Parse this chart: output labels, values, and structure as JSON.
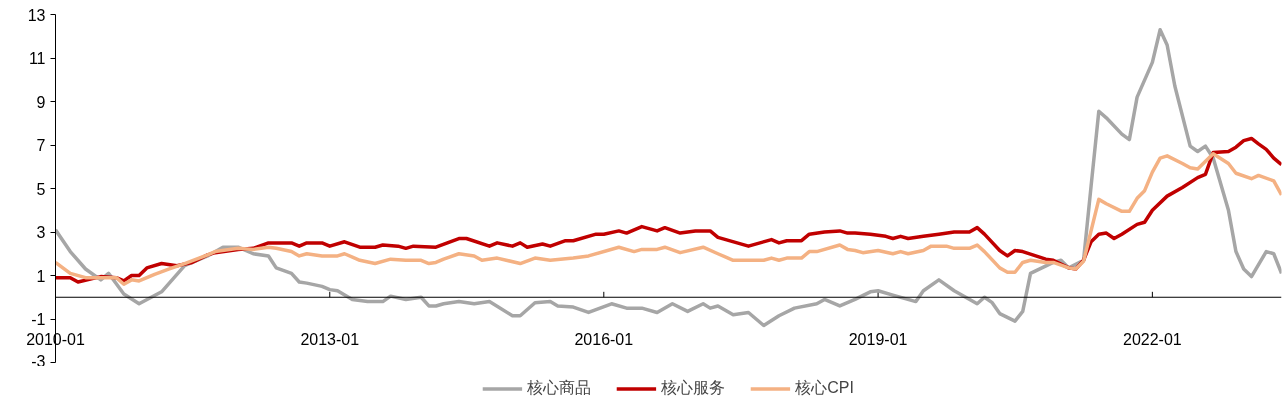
{
  "chart_data": {
    "type": "line",
    "legend": "bottom",
    "grid": false,
    "marker": "none",
    "line_style": "solid",
    "xlim": [
      "2010-01",
      "2023-06"
    ],
    "xticks": [
      "2010-01",
      "2013-01",
      "2016-01",
      "2019-01",
      "2022-01"
    ],
    "ylim": [
      -3,
      13
    ],
    "yticks": [
      -3,
      -1,
      1,
      3,
      5,
      7,
      9,
      11,
      13
    ],
    "series": [
      {
        "name": "核心商品",
        "color": "#a6a6a6",
        "x": [
          "2010-01",
          "2010-03",
          "2010-05",
          "2010-07",
          "2010-08",
          "2010-10",
          "2010-12",
          "2011-03",
          "2011-06",
          "2011-09",
          "2011-11",
          "2012-01",
          "2012-03",
          "2012-05",
          "2012-06",
          "2012-08",
          "2012-09",
          "2012-10",
          "2012-12",
          "2013-01",
          "2013-02",
          "2013-04",
          "2013-06",
          "2013-08",
          "2013-09",
          "2013-11",
          "2014-01",
          "2014-02",
          "2014-03",
          "2014-04",
          "2014-06",
          "2014-08",
          "2014-10",
          "2015-01",
          "2015-02",
          "2015-04",
          "2015-06",
          "2015-07",
          "2015-09",
          "2015-11",
          "2016-02",
          "2016-04",
          "2016-06",
          "2016-08",
          "2016-10",
          "2016-12",
          "2017-02",
          "2017-03",
          "2017-04",
          "2017-06",
          "2017-08",
          "2017-10",
          "2017-12",
          "2018-02",
          "2018-05",
          "2018-06",
          "2018-08",
          "2018-10",
          "2018-12",
          "2019-01",
          "2019-03",
          "2019-06",
          "2019-07",
          "2019-09",
          "2019-11",
          "2020-02",
          "2020-03",
          "2020-04",
          "2020-05",
          "2020-07",
          "2020-08",
          "2020-09",
          "2020-12",
          "2021-01",
          "2021-02",
          "2021-04",
          "2021-05",
          "2021-06",
          "2021-07",
          "2021-09",
          "2021-10",
          "2021-11",
          "2022-01",
          "2022-02",
          "2022-03",
          "2022-04",
          "2022-06",
          "2022-07",
          "2022-08",
          "2022-09",
          "2022-11",
          "2022-12",
          "2023-01",
          "2023-02",
          "2023-04",
          "2023-05",
          "2023-06"
        ],
        "values": [
          3.1,
          2.1,
          1.3,
          0.8,
          1.1,
          0.15,
          -0.3,
          0.25,
          1.45,
          1.9,
          2.3,
          2.3,
          2.0,
          1.9,
          1.35,
          1.1,
          0.7,
          0.65,
          0.5,
          0.35,
          0.3,
          -0.1,
          -0.2,
          -0.2,
          0.05,
          -0.1,
          0.0,
          -0.4,
          -0.4,
          -0.3,
          -0.2,
          -0.3,
          -0.2,
          -0.85,
          -0.85,
          -0.25,
          -0.2,
          -0.4,
          -0.45,
          -0.7,
          -0.3,
          -0.5,
          -0.5,
          -0.7,
          -0.3,
          -0.65,
          -0.3,
          -0.5,
          -0.4,
          -0.8,
          -0.7,
          -1.3,
          -0.85,
          -0.5,
          -0.3,
          -0.1,
          -0.4,
          -0.1,
          0.25,
          0.3,
          0.1,
          -0.2,
          0.3,
          0.8,
          0.3,
          -0.3,
          0.0,
          -0.25,
          -0.75,
          -1.1,
          -0.65,
          1.1,
          1.6,
          1.7,
          1.35,
          1.7,
          5.1,
          8.55,
          8.25,
          7.5,
          7.25,
          9.2,
          10.8,
          12.3,
          11.6,
          9.7,
          6.95,
          6.7,
          6.95,
          6.4,
          4.0,
          2.1,
          1.3,
          0.95,
          2.1,
          2.0,
          1.1
        ]
      },
      {
        "name": "核心服务",
        "color": "#c00000",
        "x": [
          "2010-01",
          "2010-03",
          "2010-04",
          "2010-07",
          "2010-09",
          "2010-10",
          "2010-11",
          "2010-12",
          "2011-01",
          "2011-03",
          "2011-05",
          "2011-07",
          "2011-09",
          "2011-10",
          "2012-01",
          "2012-03",
          "2012-05",
          "2012-08",
          "2012-09",
          "2012-10",
          "2012-12",
          "2013-01",
          "2013-03",
          "2013-05",
          "2013-07",
          "2013-08",
          "2013-10",
          "2013-11",
          "2013-12",
          "2014-03",
          "2014-06",
          "2014-07",
          "2014-10",
          "2014-11",
          "2015-01",
          "2015-02",
          "2015-03",
          "2015-05",
          "2015-06",
          "2015-08",
          "2015-09",
          "2015-12",
          "2016-01",
          "2016-03",
          "2016-04",
          "2016-06",
          "2016-08",
          "2016-09",
          "2016-11",
          "2017-01",
          "2017-03",
          "2017-04",
          "2017-08",
          "2017-11",
          "2017-12",
          "2018-01",
          "2018-03",
          "2018-04",
          "2018-06",
          "2018-08",
          "2018-09",
          "2018-10",
          "2018-12",
          "2019-02",
          "2019-03",
          "2019-04",
          "2019-05",
          "2019-07",
          "2019-09",
          "2019-11",
          "2020-01",
          "2020-02",
          "2020-03",
          "2020-05",
          "2020-06",
          "2020-07",
          "2020-08",
          "2020-11",
          "2020-12",
          "2021-02",
          "2021-03",
          "2021-04",
          "2021-05",
          "2021-06",
          "2021-07",
          "2021-08",
          "2021-09",
          "2021-11",
          "2021-12",
          "2022-01",
          "2022-03",
          "2022-05",
          "2022-07",
          "2022-08",
          "2022-09",
          "2022-11",
          "2022-12",
          "2023-01",
          "2023-02",
          "2023-03",
          "2023-04",
          "2023-05",
          "2023-06"
        ],
        "values": [
          0.9,
          0.9,
          0.7,
          0.95,
          0.9,
          0.75,
          1.0,
          1.0,
          1.35,
          1.55,
          1.45,
          1.6,
          1.95,
          2.05,
          2.2,
          2.25,
          2.5,
          2.5,
          2.35,
          2.5,
          2.5,
          2.35,
          2.55,
          2.3,
          2.3,
          2.4,
          2.35,
          2.25,
          2.35,
          2.3,
          2.7,
          2.7,
          2.35,
          2.5,
          2.35,
          2.5,
          2.3,
          2.45,
          2.35,
          2.6,
          2.6,
          2.9,
          2.9,
          3.05,
          2.95,
          3.25,
          3.05,
          3.2,
          2.95,
          3.05,
          3.05,
          2.75,
          2.35,
          2.65,
          2.5,
          2.6,
          2.6,
          2.9,
          3.0,
          3.05,
          2.95,
          2.95,
          2.9,
          2.8,
          2.7,
          2.8,
          2.7,
          2.8,
          2.9,
          3.0,
          3.0,
          3.2,
          2.9,
          2.15,
          1.9,
          2.15,
          2.1,
          1.75,
          1.7,
          1.35,
          1.3,
          1.7,
          2.55,
          2.9,
          2.95,
          2.7,
          2.9,
          3.35,
          3.45,
          4.0,
          4.65,
          5.05,
          5.5,
          5.65,
          6.65,
          6.7,
          6.9,
          7.2,
          7.3,
          7.05,
          6.8,
          6.4,
          6.1
        ]
      },
      {
        "name": "核心CPI",
        "color": "#f4b183",
        "x": [
          "2010-01",
          "2010-03",
          "2010-05",
          "2010-09",
          "2010-10",
          "2010-11",
          "2010-12",
          "2011-02",
          "2011-04",
          "2011-06",
          "2011-09",
          "2011-10",
          "2012-01",
          "2012-03",
          "2012-05",
          "2012-06",
          "2012-08",
          "2012-09",
          "2012-10",
          "2012-12",
          "2013-02",
          "2013-03",
          "2013-05",
          "2013-07",
          "2013-09",
          "2013-11",
          "2014-01",
          "2014-02",
          "2014-03",
          "2014-04",
          "2014-06",
          "2014-08",
          "2014-09",
          "2014-11",
          "2015-02",
          "2015-04",
          "2015-06",
          "2015-09",
          "2015-11",
          "2016-03",
          "2016-05",
          "2016-06",
          "2016-08",
          "2016-09",
          "2016-11",
          "2017-02",
          "2017-04",
          "2017-06",
          "2017-10",
          "2017-11",
          "2017-12",
          "2018-01",
          "2018-03",
          "2018-04",
          "2018-05",
          "2018-08",
          "2018-09",
          "2018-10",
          "2018-11",
          "2019-01",
          "2019-03",
          "2019-04",
          "2019-05",
          "2019-07",
          "2019-08",
          "2019-10",
          "2019-11",
          "2020-01",
          "2020-02",
          "2020-03",
          "2020-05",
          "2020-06",
          "2020-07",
          "2020-08",
          "2020-09",
          "2020-11",
          "2020-12",
          "2021-02",
          "2021-03",
          "2021-04",
          "2021-06",
          "2021-07",
          "2021-09",
          "2021-10",
          "2021-11",
          "2021-12",
          "2022-01",
          "2022-02",
          "2022-03",
          "2022-05",
          "2022-06",
          "2022-07",
          "2022-09",
          "2022-11",
          "2022-12",
          "2023-02",
          "2023-03",
          "2023-05",
          "2023-06"
        ],
        "values": [
          1.6,
          1.1,
          0.9,
          0.9,
          0.6,
          0.8,
          0.75,
          1.05,
          1.3,
          1.55,
          1.95,
          2.1,
          2.25,
          2.2,
          2.3,
          2.25,
          2.1,
          1.9,
          2.0,
          1.9,
          1.9,
          2.0,
          1.7,
          1.55,
          1.75,
          1.7,
          1.7,
          1.55,
          1.6,
          1.75,
          2.0,
          1.9,
          1.7,
          1.8,
          1.55,
          1.8,
          1.7,
          1.8,
          1.9,
          2.3,
          2.1,
          2.2,
          2.2,
          2.3,
          2.05,
          2.3,
          2.0,
          1.7,
          1.7,
          1.8,
          1.7,
          1.8,
          1.8,
          2.1,
          2.1,
          2.4,
          2.2,
          2.15,
          2.05,
          2.15,
          2.0,
          2.1,
          2.0,
          2.15,
          2.35,
          2.35,
          2.25,
          2.25,
          2.4,
          2.1,
          1.35,
          1.15,
          1.15,
          1.6,
          1.7,
          1.6,
          1.6,
          1.35,
          1.3,
          1.65,
          4.5,
          4.3,
          3.95,
          3.95,
          4.55,
          4.9,
          5.75,
          6.4,
          6.5,
          6.15,
          5.95,
          5.9,
          6.6,
          6.15,
          5.7,
          5.45,
          5.6,
          5.35,
          4.7
        ]
      }
    ]
  }
}
